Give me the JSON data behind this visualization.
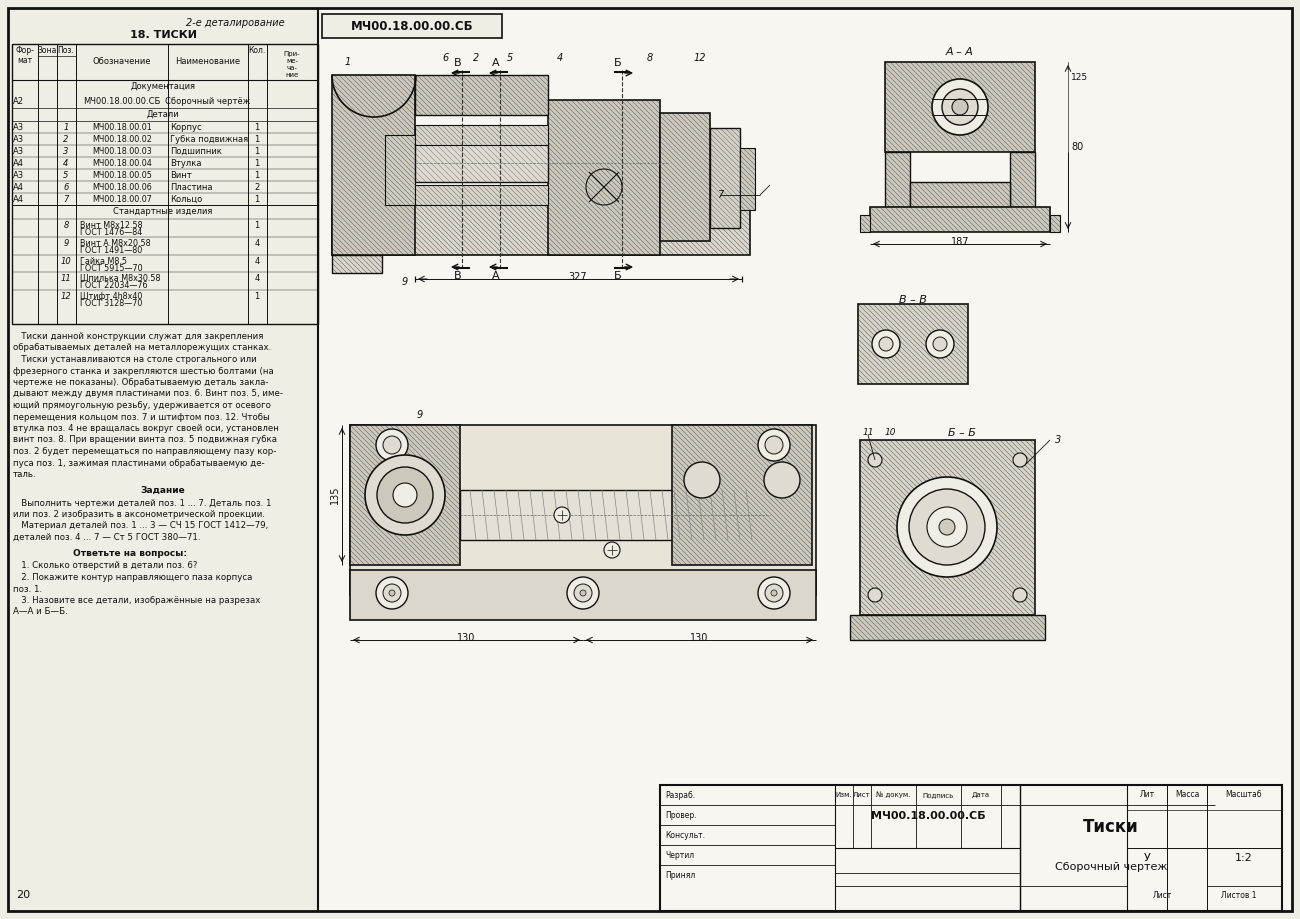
{
  "page_bg": "#f0ede4",
  "draw_bg": "#f8f6f0",
  "line_color": "#111111",
  "text_color": "#111111",
  "hatch_color": "#444444",
  "title_top": "2-е деталирование",
  "title_section": "18. ТИСКИ",
  "drawing_number_box": "МЧ00.18.00.00.СБ",
  "detail_rows": [
    [
      "А3",
      "1",
      "МЧ00.18.00.01",
      "Корпус",
      "1"
    ],
    [
      "А3",
      "2",
      "МЧ00.18.00.02",
      "Губка подвижная",
      "1"
    ],
    [
      "А3",
      "3",
      "МЧ00.18.00.03",
      "Подшипник",
      "1"
    ],
    [
      "А4",
      "4",
      "МЧ00.18.00.04",
      "Втулка",
      "1"
    ],
    [
      "А3",
      "5",
      "МЧ00.18.00.05",
      "Винт",
      "1"
    ],
    [
      "А4",
      "6",
      "МЧ00.18.00.06",
      "Пластина",
      "2"
    ],
    [
      "А4",
      "7",
      "МЧ00.18.00.07",
      "Кольцо",
      "1"
    ]
  ],
  "standard_rows": [
    [
      "8",
      "Винт М8х12.58\nГОСТ 1476—84",
      "1"
    ],
    [
      "9",
      "Винт А.М8х20.58\nГОСТ 1491—80",
      "4"
    ],
    [
      "10",
      "Гайка М8.5\nГОСТ 5915—70",
      "4"
    ],
    [
      "11",
      "Шпилька М8х30.58\nГОСТ 22034—76",
      "4"
    ],
    [
      "12",
      "Штифт 4h8х40\nГОСТ 3128—70",
      "1"
    ]
  ],
  "desc_text": [
    "   Тиски данной конструкции служат для закрепления",
    "обрабатываемых деталей на металлорежущих станках.",
    "   Тиски устанавливаются на столе строгального или",
    "фрезерного станка и закрепляются шестью болтами (на",
    "чертеже не показаны). Обрабатываемую деталь закла-",
    "дывают между двумя пластинами поз. 6. Винт поз. 5, име-",
    "ющий прямоугольную резьбу, удерживается от осевого",
    "перемещения кольцом поз. 7 и штифтом поз. 12. Чтобы",
    "втулка поз. 4 не вращалась вокруг своей оси, установлен",
    "винт поз. 8. При вращении винта поз. 5 подвижная губка",
    "поз. 2 будет перемещаться по направляющему пазу кор-",
    "пуса поз. 1, зажимая пластинами обрабатываемую де-",
    "таль."
  ],
  "task_text": [
    "   Выполнить чертежи деталей поз. 1 ... 7. Деталь поз. 1",
    "или поз. 2 изобразить в аксонометрической проекции.",
    "   Материал деталей поз. 1 ... 3 — СЧ 15 ГОСТ 1412—79,",
    "деталей поз. 4 ... 7 — Ст 5 ГОСТ 380—71."
  ],
  "q_text": [
    "   1. Сколько отверстий в детали поз. 6?",
    "   2. Покажите контур направляющего паза корпуса",
    "поз. 1.",
    "   3. Назовите все детали, изображённые на разрезах",
    "А—А и Б—Б."
  ],
  "tb_drawing_num": "МЧ00.18.00.00.СБ",
  "tb_name": "Тиски",
  "tb_subtitle": "Сборочный чертеж",
  "tb_scale": "1:2",
  "tb_lit": "У",
  "page_num": "20"
}
